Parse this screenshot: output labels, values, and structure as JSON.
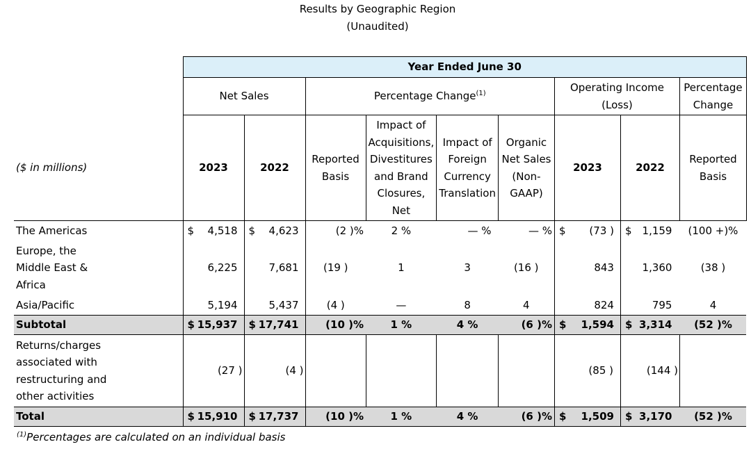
{
  "title": "Results by Geographic Region",
  "subtitle": "(Unaudited)",
  "header": {
    "period": "Year Ended June 30",
    "net_sales": "Net Sales",
    "pct_change": "Percentage Change",
    "pct_change_sup": "(1)",
    "operating_income": "Operating Income (Loss)",
    "pct_change2": "Percentage Change",
    "units": "($ in millions)",
    "year1": "2023",
    "year2": "2022",
    "reported_basis": "Reported Basis",
    "impact_acq": "Impact of Acquisitions, Divestitures and Brand Closures, Net",
    "impact_fx": "Impact of Foreign Currency Translation",
    "organic": "Organic Net Sales (Non-GAAP)",
    "op_year1": "2023",
    "op_year2": "2022",
    "reported_basis2": "Reported Basis"
  },
  "rows": [
    {
      "label": "The Americas",
      "d1": "$",
      "ns23": "4,518",
      "d2": "$",
      "ns22": "4,623",
      "rep": "(2 )%",
      "acq": "2 %",
      "fx": "— %",
      "org": "— %",
      "d3": "$",
      "oi23": "(73 )",
      "d4": "$",
      "oi22": "1,159",
      "oirep": "(100 +)%"
    },
    {
      "label": "Europe, the Middle East & Africa",
      "d1": "",
      "ns23": "6,225",
      "d2": "",
      "ns22": "7,681",
      "rep": "(19 )",
      "acq": "1",
      "fx": "3",
      "org": "(16 )",
      "d3": "",
      "oi23": "843",
      "d4": "",
      "oi22": "1,360",
      "oirep": "(38 )"
    },
    {
      "label": "Asia/Pacific",
      "d1": "",
      "ns23": "5,194",
      "d2": "",
      "ns22": "5,437",
      "rep": "(4 )",
      "acq": "—",
      "fx": "8",
      "org": "4",
      "d3": "",
      "oi23": "824",
      "d4": "",
      "oi22": "795",
      "oirep": "4"
    }
  ],
  "subtotal": {
    "label": "Subtotal",
    "d1": "$",
    "ns23": "15,937",
    "d2": "$",
    "ns22": "17,741",
    "rep": "(10 )%",
    "acq": "1 %",
    "fx": "4 %",
    "org": "(6 )%",
    "d3": "$",
    "oi23": "1,594",
    "d4": "$",
    "oi22": "3,314",
    "oirep": "(52 )%"
  },
  "returns": {
    "label": "Returns/charges associated with restructuring and other activities",
    "ns23": "(27 )",
    "ns22": "(4 )",
    "oi23": "(85 )",
    "oi22": "(144 )"
  },
  "total": {
    "label": "Total",
    "d1": "$",
    "ns23": "15,910",
    "d2": "$",
    "ns22": "17,737",
    "rep": "(10 )%",
    "acq": "1 %",
    "fx": "4 %",
    "org": "(6 )%",
    "d3": "$",
    "oi23": "1,509",
    "d4": "$",
    "oi22": "3,170",
    "oirep": "(52 )%"
  },
  "footnote": {
    "sup": "(1)",
    "text": "Percentages are calculated on an individual basis"
  }
}
